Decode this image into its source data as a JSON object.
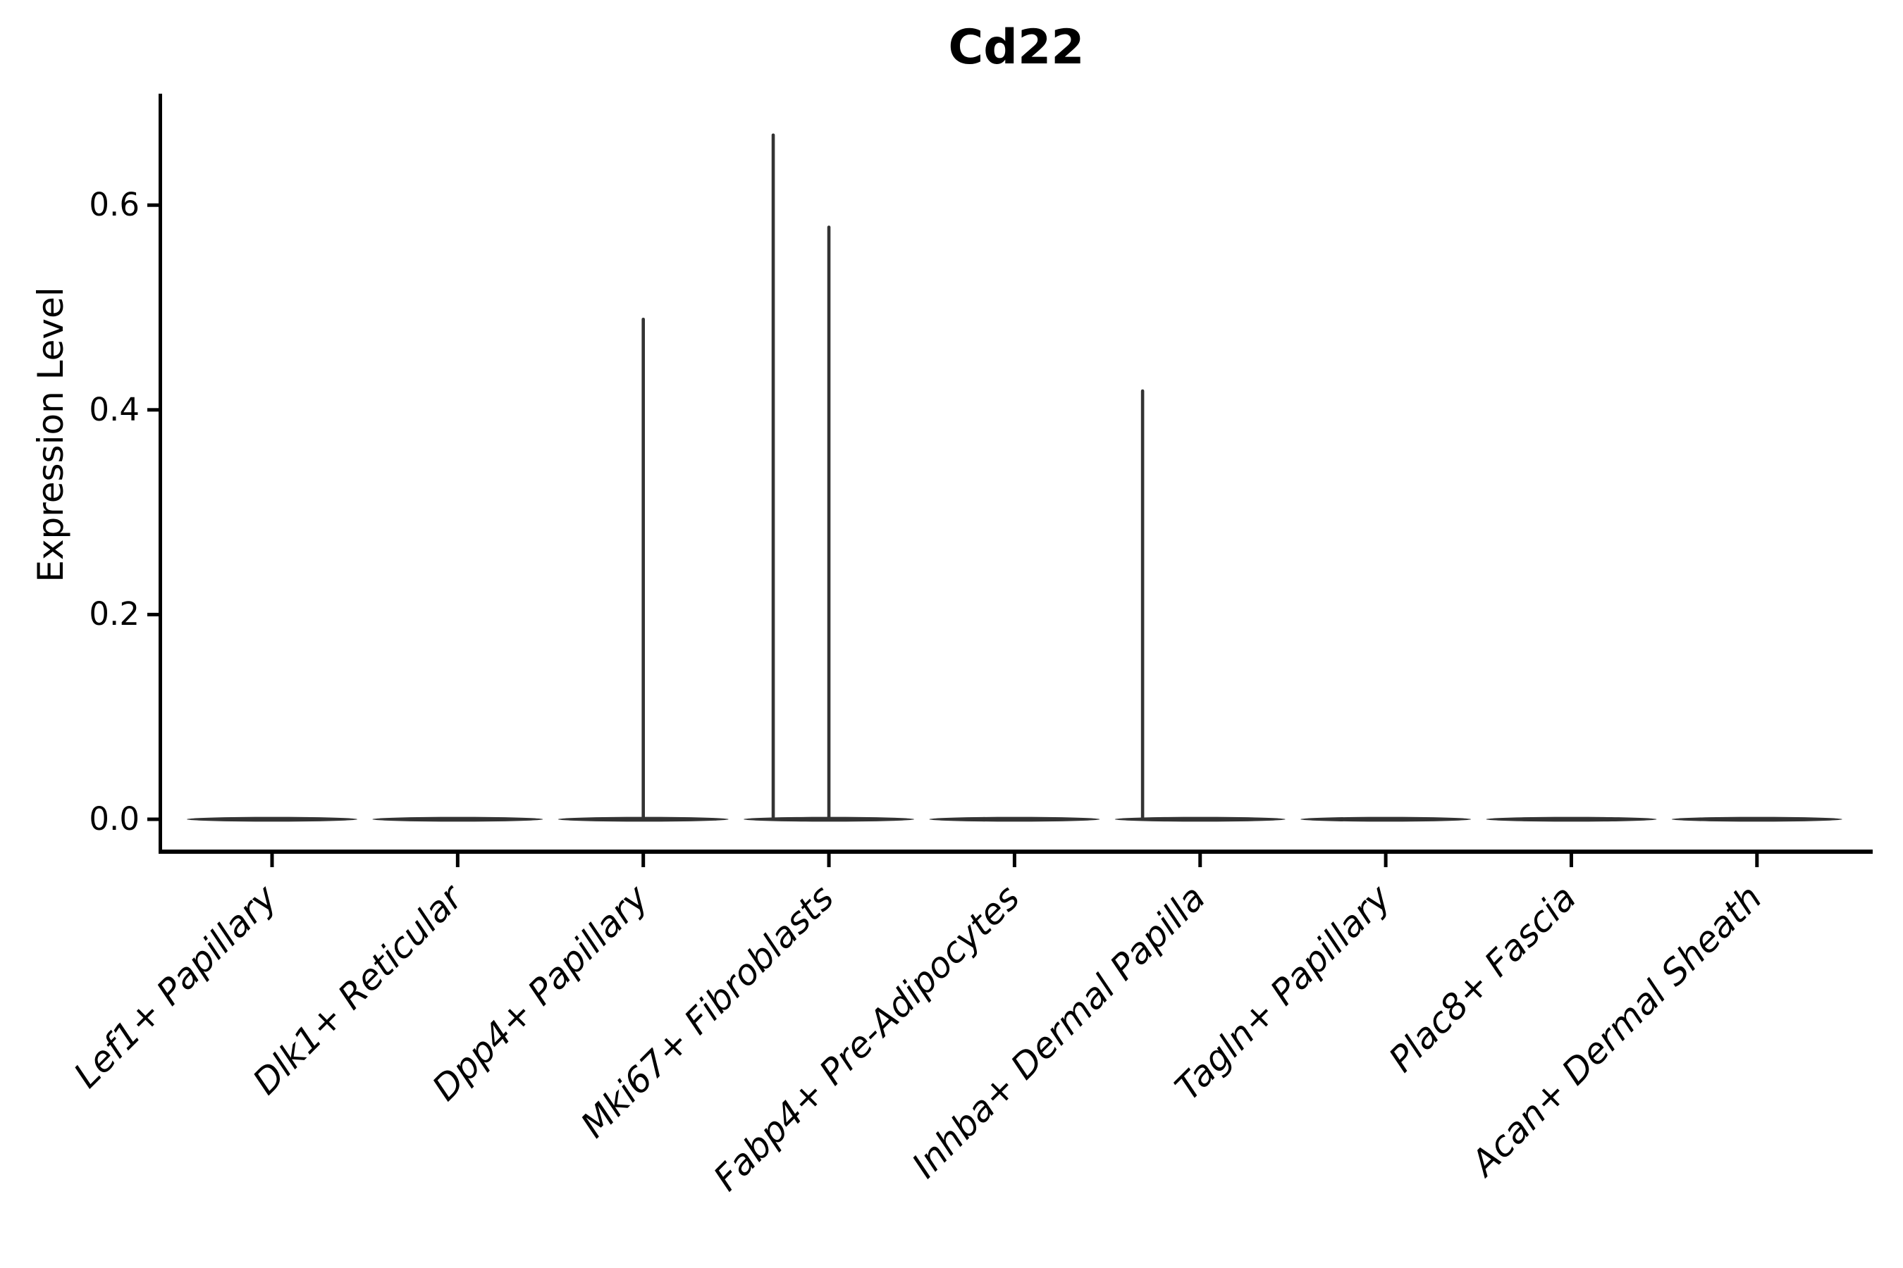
{
  "figure": {
    "background": "#ffffff"
  },
  "chart_data": {
    "type": "violin",
    "title": "Cd22",
    "ylabel": "Expression Level",
    "xlabel": "",
    "ylim": [
      0,
      0.71
    ],
    "yticks": [
      0,
      0.2,
      0.4,
      0.6
    ],
    "ytick_labels": [
      "0.0",
      "0.2",
      "0.4",
      "0.6"
    ],
    "categories": [
      "Lef1+ Papillary",
      "Dlk1+ Reticular",
      "Dpp4+ Papillary",
      "Mki67+ Fibroblasts",
      "Fabp4+ Pre-Adipocytes",
      "Inhba+ Dermal Papilla",
      "Tagln+ Papillary",
      "Plac8+ Fascia",
      "Acan+ Dermal Sheath"
    ],
    "grid": false,
    "legend": null,
    "colors": {
      "violin": "#333333",
      "axis": "#000000",
      "text": "#000000"
    },
    "series": [
      {
        "name": "Lef1+ Papillary",
        "baseline_value": 0,
        "max_expression": 0,
        "spikes": []
      },
      {
        "name": "Dlk1+ Reticular",
        "baseline_value": 0,
        "max_expression": 0,
        "spikes": []
      },
      {
        "name": "Dpp4+ Papillary",
        "baseline_value": 0,
        "max_expression": 0.49,
        "spikes": [
          {
            "dx": 0,
            "value": 0.49
          }
        ]
      },
      {
        "name": "Mki67+ Fibroblasts",
        "baseline_value": 0,
        "max_expression": 0.67,
        "spikes": [
          {
            "dx": -0.3,
            "value": 0.67
          },
          {
            "dx": 0,
            "value": 0.58
          }
        ]
      },
      {
        "name": "Fabp4+ Pre-Adipocytes",
        "baseline_value": 0,
        "max_expression": 0,
        "spikes": []
      },
      {
        "name": "Inhba+ Dermal Papilla",
        "baseline_value": 0,
        "max_expression": 0.42,
        "spikes": [
          {
            "dx": -0.31,
            "value": 0.42
          }
        ]
      },
      {
        "name": "Tagln+ Papillary",
        "baseline_value": 0,
        "max_expression": 0,
        "spikes": []
      },
      {
        "name": "Plac8+ Fascia",
        "baseline_value": 0,
        "max_expression": 0,
        "spikes": []
      },
      {
        "name": "Acan+ Dermal Sheath",
        "baseline_value": 0,
        "max_expression": 0,
        "spikes": []
      }
    ]
  }
}
